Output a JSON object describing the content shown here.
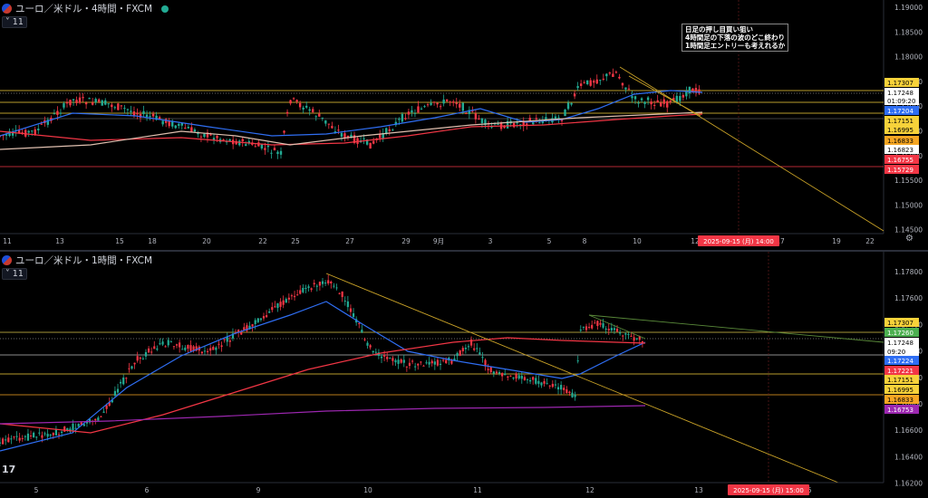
{
  "pane1": {
    "title": "ユーロ／米ドル・4時間・FXCM",
    "collapse": "˅ 11",
    "note_lines": [
      "日足の押し目買い狙い",
      "4時間足の下落の波のどこ終わり",
      "1時間足エントリーも考えれるか"
    ],
    "y_ticks": [
      "1.19000",
      "1.18500",
      "1.18000",
      "1.17500",
      "1.17000",
      "1.16500",
      "1.16000",
      "1.15500",
      "1.15000",
      "1.14500"
    ],
    "x_ticks": [
      "11",
      "13",
      "15",
      "18",
      "20",
      "22",
      "25",
      "27",
      "29",
      "9月",
      "3",
      "5",
      "8",
      "10",
      "12",
      "17",
      "19",
      "22"
    ],
    "cursor_time": "2025-09-15 (月)  14:00",
    "badges": [
      {
        "text": "1.17307",
        "bg": "#f7d23a",
        "fg": "#000"
      },
      {
        "text": "1.17248",
        "bg": "#ffffff",
        "fg": "#000"
      },
      {
        "text": "01:09:20",
        "bg": "#ffffff",
        "fg": "#000"
      },
      {
        "text": "1.17204",
        "bg": "#2f6ef3",
        "fg": "#fff"
      },
      {
        "text": "1.17151",
        "bg": "#f7d23a",
        "fg": "#000"
      },
      {
        "text": "1.16995",
        "bg": "#f7d23a",
        "fg": "#000"
      },
      {
        "text": "1.16833",
        "bg": "#f5a623",
        "fg": "#000"
      },
      {
        "text": "1.16823",
        "bg": "#ffffff",
        "fg": "#000"
      },
      {
        "text": "1.16755",
        "bg": "#f23645",
        "fg": "#fff"
      },
      {
        "text": "1.15729",
        "bg": "#f23645",
        "fg": "#fff"
      }
    ]
  },
  "pane2": {
    "title": "ユーロ／米ドル・1時間・FXCM",
    "collapse": "˅ 11",
    "y_ticks": [
      "1.17800",
      "1.17600",
      "1.17400",
      "1.17200",
      "1.17000",
      "1.16800",
      "1.16600",
      "1.16400",
      "1.16200"
    ],
    "x_ticks": [
      "5",
      "6",
      "9",
      "10",
      "11",
      "12",
      "13",
      "6"
    ],
    "cursor_time": "2025-09-15 (月)  15:00",
    "badges": [
      {
        "text": "1.17307",
        "bg": "#f7d23a",
        "fg": "#000"
      },
      {
        "text": "1.17260",
        "bg": "#4caf50",
        "fg": "#fff"
      },
      {
        "text": "1.17248",
        "bg": "#ffffff",
        "fg": "#000"
      },
      {
        "text": "09:20",
        "bg": "#ffffff",
        "fg": "#000"
      },
      {
        "text": "1.17224",
        "bg": "#2f6ef3",
        "fg": "#fff"
      },
      {
        "text": "1.17221",
        "bg": "#f23645",
        "fg": "#fff"
      },
      {
        "text": "1.17151",
        "bg": "#f7d23a",
        "fg": "#000"
      },
      {
        "text": "1.16995",
        "bg": "#f7d23a",
        "fg": "#000"
      },
      {
        "text": "1.16833",
        "bg": "#f5a623",
        "fg": "#000"
      },
      {
        "text": "1.16753",
        "bg": "#9c27b0",
        "fg": "#fff"
      }
    ]
  },
  "colors": {
    "bull": "#22ab94",
    "bear": "#f23645",
    "ma_fast": "#2f6ef3",
    "ma_mid": "#f23645",
    "ma_slow": "#e0c0b0",
    "ma_long": "#9c27b0",
    "hline": "#f7d23a"
  }
}
